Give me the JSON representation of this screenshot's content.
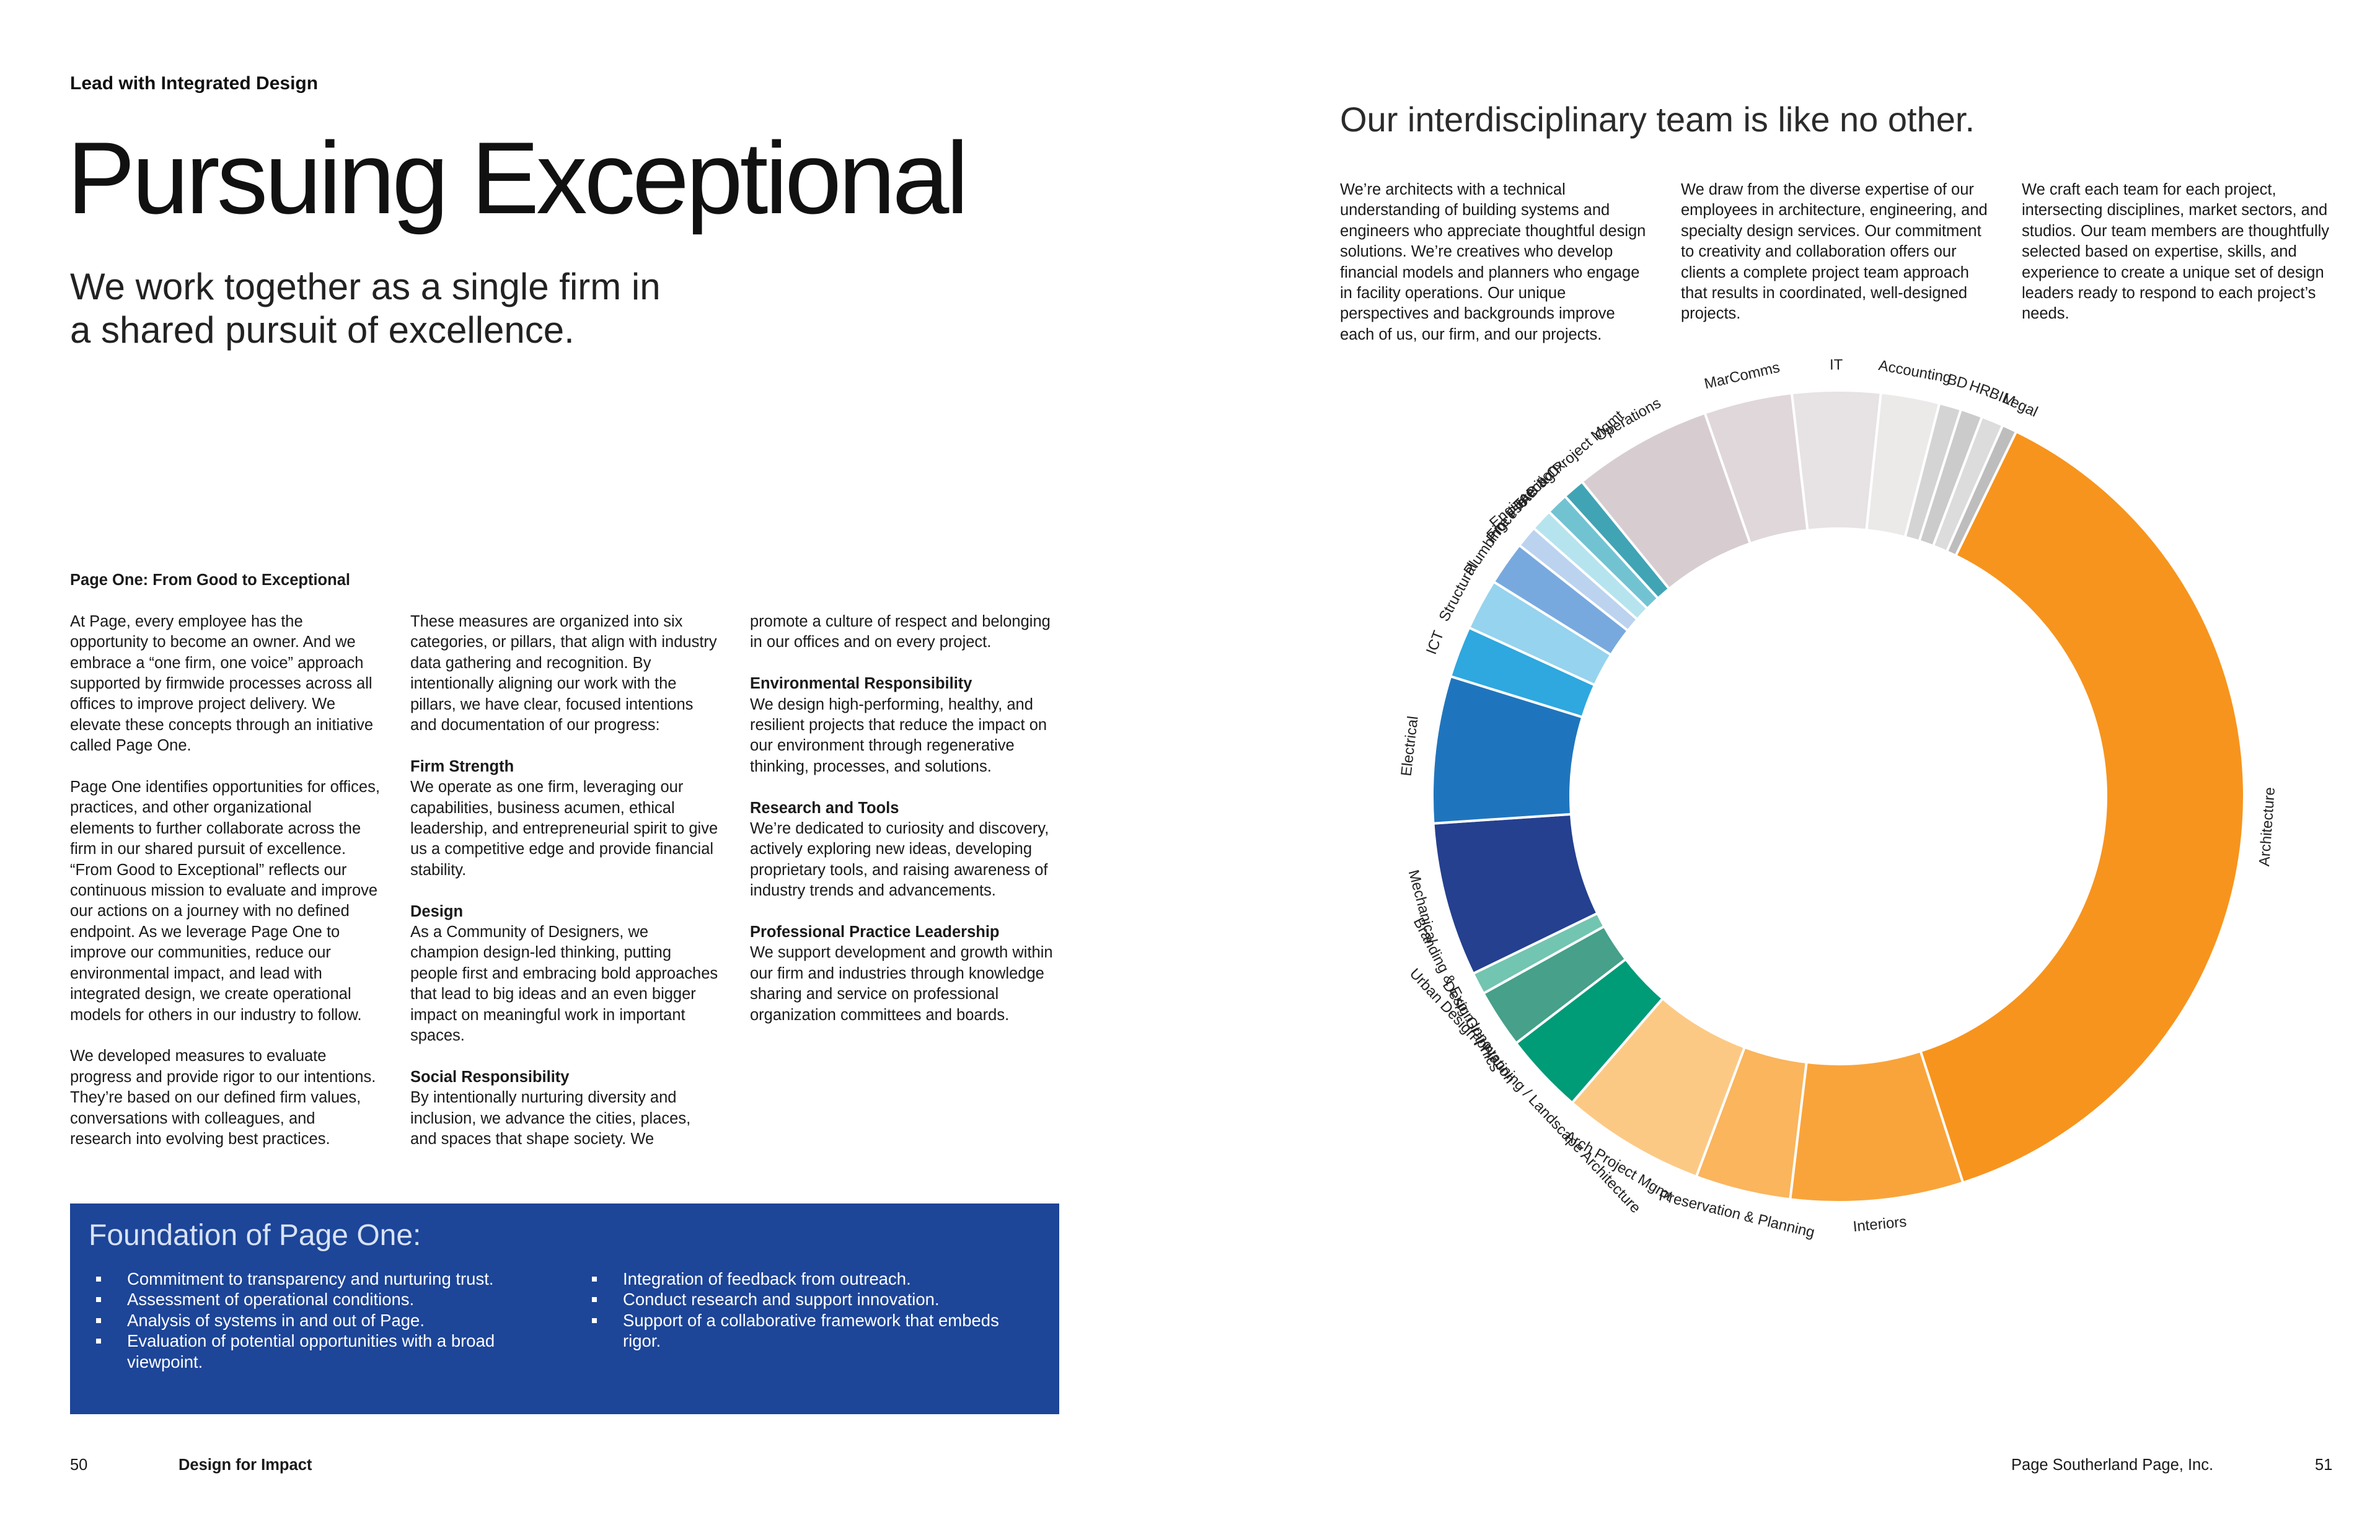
{
  "left_page": {
    "section_label": "Lead with Integrated Design",
    "title": "Pursuing Exceptional",
    "subtitle": "We work together as a single firm in a shared pursuit of excellence.",
    "col1": {
      "heading": "Page One: From Good to Exceptional",
      "paragraphs": [
        "At Page, every employee has the opportunity to become an owner. And we embrace a “one firm, one voice” approach supported by firmwide processes across all offices to improve project delivery. We elevate these concepts through an initiative called Page One.",
        "Page One identifies opportunities for offices, practices, and other organizational elements to further collaborate across the firm in our shared pursuit of excellence. “From Good to Exceptional” reflects our continuous mission to evaluate and improve our actions on a journey with no defined endpoint. As we leverage Page One to improve our communities, reduce our environmental impact, and lead with integrated design, we create operational models for others in our industry to follow.",
        "We developed measures to evaluate progress and provide rigor to our intentions. They’re based on our defined firm values, conversations with colleagues, and research into evolving best practices."
      ]
    },
    "col2": {
      "intro": "These measures are organized into six categories, or pillars, that align with industry data gathering and recognition. By intentionally aligning our work with the pillars, we have clear, focused intentions and documentation of our progress:",
      "pillars": [
        {
          "heading": "Firm Strength",
          "text": "We operate as one firm, leveraging our capabilities, business acumen, ethical leadership, and entrepreneurial spirit to give us a competitive edge and provide financial stability."
        },
        {
          "heading": "Design",
          "text": "As a Community of Designers, we champion design-led thinking, putting people first and embracing bold approaches that lead to big ideas and an even bigger impact on meaningful work in important spaces."
        },
        {
          "heading": "Social Responsibility",
          "text": "By intentionally nurturing diversity and inclusion, we advance the cities, places, and spaces that shape society. We"
        }
      ]
    },
    "col3": {
      "continuation": "promote a culture of respect and belonging in our offices and on every project.",
      "pillars": [
        {
          "heading": "Environmental Responsibility",
          "text": "We design high-performing, healthy, and resilient projects that reduce the impact on our environment through regenerative thinking, processes, and solutions."
        },
        {
          "heading": "Research and Tools",
          "text": "We’re dedicated to curiosity and discovery, actively exploring new ideas, developing proprietary tools, and raising awareness of industry trends and advancements."
        },
        {
          "heading": "Professional Practice Leadership",
          "text": "We support development and growth within our firm and industries through knowledge sharing and service on professional organization committees and boards."
        }
      ]
    },
    "foundation": {
      "title": "Foundation of Page One:",
      "left_items": [
        "Commitment to transparency and nurturing trust.",
        "Assessment of operational conditions.",
        "Analysis of systems in and out of Page.",
        "Evaluation of potential opportunities with a broad viewpoint."
      ],
      "right_items": [
        "Integration of feedback from outreach.",
        "Conduct research and support innovation.",
        "Support of a collaborative framework that embeds rigor."
      ]
    },
    "footer": {
      "page_number": "50",
      "publication": "Design for Impact"
    }
  },
  "right_page": {
    "title": "Our interdisciplinary team is like no other.",
    "intro_columns": [
      "We’re architects with a technical understanding of building systems and engineers who appreciate thoughtful design solutions. We’re creatives who develop financial models and planners who engage in facility operations. Our unique perspectives and backgrounds improve each of us, our firm, and our projects.",
      "We draw from the diverse expertise of our employees in architecture, engineering, and specialty design services. Our commitment to creativity and collaboration offers our clients a complete project team approach that results in coordinated, well-designed projects.",
      "We craft each team for each project, intersecting disciplines, market sectors, and studios. Our team members are thoughtfully selected based on expertise, skills, and experience to create a unique set of design leaders ready to respond to each project’s needs."
    ],
    "footer": {
      "company": "Page Southerland Page, Inc.",
      "page_number": "51"
    }
  },
  "chart_data": {
    "type": "pie",
    "donut": true,
    "title": "",
    "start_angle_deg": -64,
    "direction": "clockwise",
    "categories": [
      "Architecture",
      "Interiors",
      "Preservation & Planning",
      "Arch Project Mgmt",
      "Urban Design / Planning / Landscape Architecture",
      "Design Innovation",
      "Branding & Exp. Graphics",
      "Mechanical",
      "Electrical",
      "ICT",
      "Structural",
      "Plumbing",
      "Process",
      "Fire Protection",
      "TAB & Cx",
      "Engineering Project Mgmt",
      "Operations",
      "MarComms",
      "IT",
      "Accounting",
      "BD",
      "HR",
      "BIM",
      "Legal"
    ],
    "values": [
      129.5,
      23.5,
      13,
      19.5,
      11,
      8,
      3,
      21,
      20,
      7,
      7,
      6,
      3,
      3,
      3,
      3,
      19,
      12,
      12,
      8,
      3,
      3,
      3,
      2
    ],
    "colors": [
      "#f7941d",
      "#f9a43a",
      "#fab55d",
      "#fcc985",
      "#009b77",
      "#46a08a",
      "#72c5b0",
      "#24408f",
      "#1f75bd",
      "#2ea8df",
      "#96d3ee",
      "#78a9de",
      "#bcd3ef",
      "#b6e4ee",
      "#72c3d2",
      "#40a4b5",
      "#d7cdd1",
      "#e0d7da",
      "#e7e2e3",
      "#eceae9",
      "#d4d4d4",
      "#cbcbcb",
      "#dcdcdc",
      "#bdbdbd"
    ]
  }
}
